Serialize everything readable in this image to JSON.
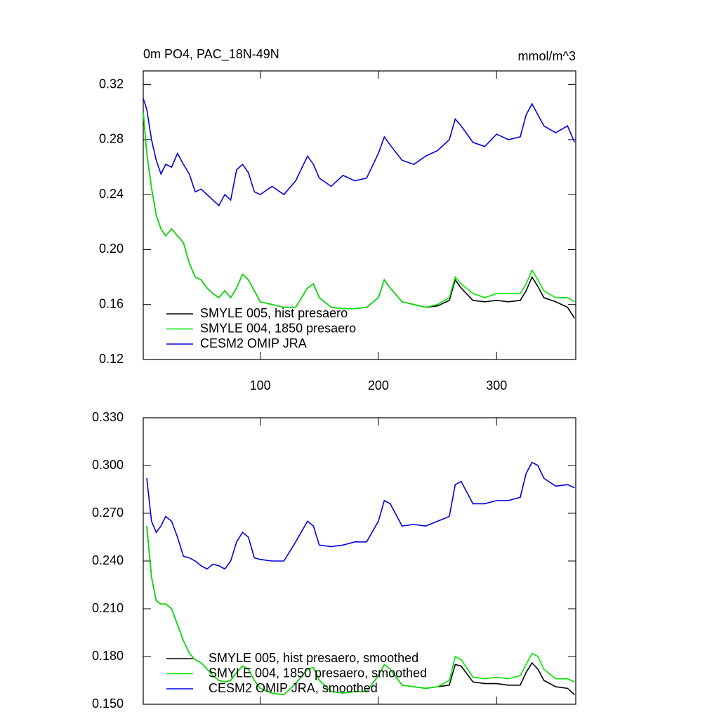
{
  "chart_data": [
    {
      "type": "line",
      "title": "0m PO4, PAC_18N-49N",
      "units_label": "mmol/m^3",
      "x": [
        1,
        4,
        8,
        12,
        16,
        20,
        25,
        30,
        35,
        40,
        45,
        50,
        55,
        60,
        65,
        70,
        75,
        80,
        85,
        90,
        95,
        100,
        110,
        120,
        130,
        140,
        145,
        150,
        160,
        170,
        180,
        190,
        200,
        205,
        210,
        220,
        230,
        240,
        250,
        260,
        265,
        270,
        280,
        290,
        300,
        310,
        320,
        325,
        330,
        335,
        340,
        350,
        360,
        366
      ],
      "xlim": [
        1,
        367
      ],
      "xticks": [
        100,
        200,
        300
      ],
      "ylim": [
        0.12,
        0.33
      ],
      "yticks": [
        0.12,
        0.16,
        {
          "value": 0.2,
          "label": "0.20"
        },
        0.24,
        0.28,
        0.32
      ],
      "legend": "lower left",
      "series": [
        {
          "name": "SMYLE 005, hist presaero",
          "color": "#000000",
          "values": [
            0.3,
            0.27,
            0.245,
            0.225,
            0.215,
            0.21,
            0.215,
            0.21,
            0.205,
            0.19,
            0.18,
            0.178,
            0.172,
            0.168,
            0.165,
            0.17,
            0.165,
            0.172,
            0.182,
            0.178,
            0.17,
            0.162,
            0.16,
            0.158,
            0.158,
            0.172,
            0.175,
            0.165,
            0.158,
            0.157,
            0.157,
            0.158,
            0.165,
            0.178,
            0.172,
            0.162,
            0.16,
            0.158,
            0.159,
            0.163,
            0.178,
            0.172,
            0.163,
            0.162,
            0.163,
            0.162,
            0.163,
            0.17,
            0.18,
            0.173,
            0.165,
            0.162,
            0.158,
            0.15
          ]
        },
        {
          "name": "SMYLE 004, 1850 presaero",
          "color": "#00e600",
          "values": [
            0.3,
            0.27,
            0.245,
            0.225,
            0.215,
            0.21,
            0.215,
            0.21,
            0.205,
            0.19,
            0.18,
            0.178,
            0.172,
            0.168,
            0.165,
            0.17,
            0.165,
            0.172,
            0.182,
            0.178,
            0.17,
            0.162,
            0.16,
            0.158,
            0.158,
            0.172,
            0.175,
            0.165,
            0.158,
            0.157,
            0.157,
            0.158,
            0.165,
            0.178,
            0.172,
            0.162,
            0.16,
            0.158,
            0.16,
            0.165,
            0.18,
            0.175,
            0.168,
            0.165,
            0.168,
            0.168,
            0.168,
            0.175,
            0.185,
            0.178,
            0.17,
            0.165,
            0.165,
            0.162
          ]
        },
        {
          "name": "CESM2 OMIP JRA",
          "color": "#0000e0",
          "values": [
            0.31,
            0.302,
            0.28,
            0.265,
            0.255,
            0.262,
            0.26,
            0.27,
            0.262,
            0.255,
            0.242,
            0.244,
            0.24,
            0.236,
            0.232,
            0.24,
            0.236,
            0.258,
            0.262,
            0.256,
            0.242,
            0.24,
            0.246,
            0.24,
            0.25,
            0.268,
            0.262,
            0.252,
            0.246,
            0.254,
            0.25,
            0.252,
            0.27,
            0.282,
            0.276,
            0.265,
            0.262,
            0.268,
            0.272,
            0.28,
            0.295,
            0.29,
            0.278,
            0.275,
            0.284,
            0.28,
            0.282,
            0.298,
            0.306,
            0.298,
            0.29,
            0.285,
            0.29,
            0.278
          ]
        }
      ]
    },
    {
      "type": "line",
      "x": [
        1,
        4,
        8,
        12,
        16,
        20,
        25,
        30,
        35,
        40,
        45,
        50,
        55,
        60,
        65,
        70,
        75,
        80,
        85,
        90,
        95,
        100,
        110,
        120,
        130,
        140,
        145,
        150,
        160,
        170,
        180,
        190,
        200,
        205,
        210,
        220,
        230,
        240,
        250,
        260,
        265,
        270,
        280,
        290,
        300,
        310,
        320,
        325,
        330,
        335,
        340,
        350,
        360,
        366
      ],
      "xlim": [
        1,
        367
      ],
      "xticks": [
        100,
        200,
        300
      ],
      "ylim": [
        0.15,
        0.33
      ],
      "yticks": [
        {
          "value": 0.15,
          "label": "0.150"
        },
        {
          "value": 0.18,
          "label": "0.180"
        },
        {
          "value": 0.21,
          "label": "0.210"
        },
        {
          "value": 0.24,
          "label": "0.240"
        },
        {
          "value": 0.27,
          "label": "0.270"
        },
        {
          "value": 0.3,
          "label": "0.300"
        },
        {
          "value": 0.33,
          "label": "0.330"
        }
      ],
      "legend": "lower left",
      "series": [
        {
          "name": "SMYLE 005, hist presaero, smoothed",
          "color": "#000000",
          "values": [
            null,
            0.262,
            0.23,
            0.215,
            0.213,
            0.213,
            0.21,
            0.2,
            0.19,
            0.182,
            0.178,
            0.176,
            0.172,
            0.168,
            0.165,
            0.164,
            0.165,
            0.17,
            0.174,
            0.172,
            0.165,
            0.16,
            0.157,
            0.156,
            0.163,
            0.172,
            0.173,
            0.165,
            0.158,
            0.157,
            0.158,
            0.158,
            0.168,
            0.175,
            0.172,
            0.162,
            0.161,
            0.16,
            0.161,
            0.162,
            0.175,
            0.174,
            0.164,
            0.163,
            0.163,
            0.162,
            0.162,
            0.17,
            0.176,
            0.172,
            0.165,
            0.161,
            0.16,
            0.156
          ]
        },
        {
          "name": "SMYLE 004, 1850 presaero, smoothed",
          "color": "#00e600",
          "values": [
            null,
            0.262,
            0.23,
            0.215,
            0.213,
            0.213,
            0.21,
            0.2,
            0.19,
            0.182,
            0.178,
            0.176,
            0.172,
            0.168,
            0.165,
            0.164,
            0.165,
            0.17,
            0.174,
            0.172,
            0.165,
            0.16,
            0.157,
            0.156,
            0.163,
            0.172,
            0.173,
            0.165,
            0.158,
            0.157,
            0.158,
            0.158,
            0.168,
            0.175,
            0.172,
            0.162,
            0.161,
            0.16,
            0.161,
            0.165,
            0.18,
            0.178,
            0.167,
            0.166,
            0.167,
            0.166,
            0.168,
            0.175,
            0.182,
            0.18,
            0.172,
            0.166,
            0.166,
            0.164
          ]
        },
        {
          "name": "CESM2 OMIP JRA, smoothed",
          "color": "#0000e0",
          "values": [
            null,
            0.292,
            0.265,
            0.258,
            0.262,
            0.268,
            0.265,
            0.255,
            0.243,
            0.242,
            0.24,
            0.237,
            0.235,
            0.238,
            0.237,
            0.235,
            0.24,
            0.252,
            0.258,
            0.255,
            0.242,
            0.241,
            0.24,
            0.24,
            0.252,
            0.265,
            0.262,
            0.25,
            0.249,
            0.25,
            0.252,
            0.252,
            0.265,
            0.278,
            0.276,
            0.262,
            0.263,
            0.262,
            0.265,
            0.268,
            0.288,
            0.29,
            0.276,
            0.276,
            0.278,
            0.278,
            0.28,
            0.295,
            0.302,
            0.3,
            0.292,
            0.287,
            0.288,
            0.286
          ]
        }
      ]
    }
  ]
}
